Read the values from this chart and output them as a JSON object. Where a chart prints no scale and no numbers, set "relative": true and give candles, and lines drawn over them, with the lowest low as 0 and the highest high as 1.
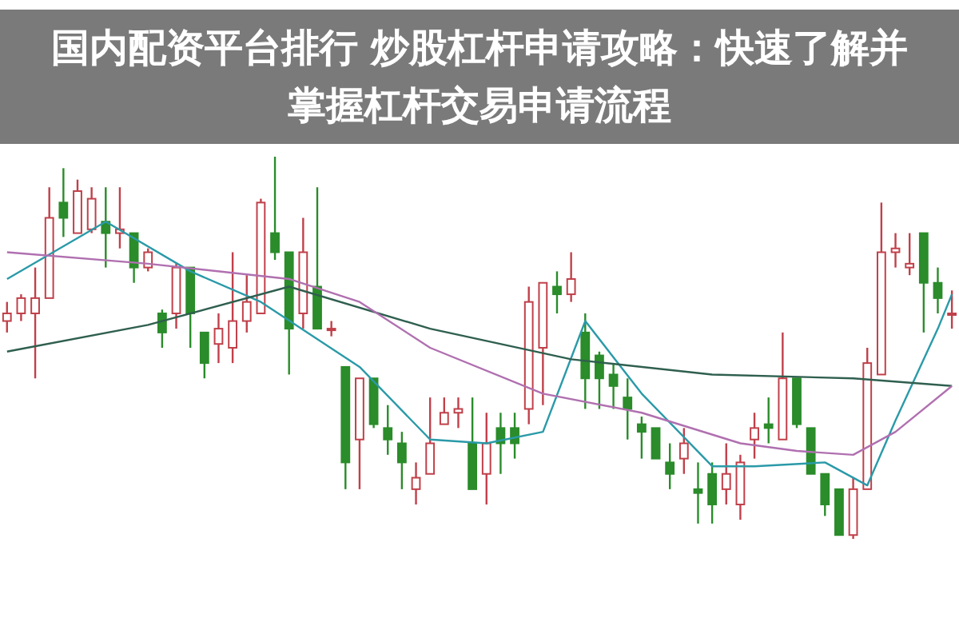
{
  "chart_data": {
    "type": "candlestick",
    "title": "国内配资平台排行 炒股杠杆申请攻略：快速了解并掌握杠杆交易申请流程",
    "relative": true,
    "categories": [
      null,
      null,
      null,
      null,
      null,
      null,
      null,
      null,
      null,
      null,
      null,
      null,
      null,
      null,
      null,
      null,
      null,
      null,
      null,
      null,
      null,
      null,
      null,
      null,
      null,
      null,
      null,
      null,
      null,
      null,
      null,
      null,
      null,
      null,
      null,
      null,
      null,
      null,
      null,
      null,
      null,
      null,
      null,
      null,
      null,
      null,
      null,
      null,
      null,
      null,
      null,
      null,
      null,
      null,
      null,
      null,
      null,
      null,
      null,
      null,
      null,
      null,
      null,
      null,
      null,
      null,
      null,
      null
    ],
    "ohlc": [
      [
        0.57,
        0.62,
        0.54,
        0.59
      ],
      [
        0.59,
        0.64,
        0.57,
        0.63
      ],
      [
        0.59,
        0.71,
        0.42,
        0.63
      ],
      [
        0.63,
        0.92,
        0.63,
        0.84
      ],
      [
        0.88,
        0.97,
        0.79,
        0.84
      ],
      [
        0.8,
        0.94,
        0.8,
        0.91
      ],
      [
        0.81,
        0.92,
        0.8,
        0.89
      ],
      [
        0.83,
        0.92,
        0.71,
        0.8
      ],
      [
        0.8,
        0.92,
        0.76,
        0.81
      ],
      [
        0.8,
        0.8,
        0.67,
        0.71
      ],
      [
        0.71,
        0.76,
        0.7,
        0.75
      ],
      [
        0.59,
        0.6,
        0.5,
        0.54
      ],
      [
        0.59,
        0.72,
        0.55,
        0.71
      ],
      [
        0.71,
        0.71,
        0.5,
        0.59
      ],
      [
        0.54,
        0.54,
        0.42,
        0.46
      ],
      [
        0.51,
        0.59,
        0.46,
        0.55
      ],
      [
        0.5,
        0.75,
        0.46,
        0.57
      ],
      [
        0.57,
        0.69,
        0.54,
        0.62
      ],
      [
        0.59,
        0.89,
        0.59,
        0.88
      ],
      [
        0.8,
        1.0,
        0.73,
        0.75
      ],
      [
        0.75,
        0.75,
        0.43,
        0.55
      ],
      [
        0.59,
        0.84,
        0.55,
        0.75
      ],
      [
        0.66,
        0.92,
        0.55,
        0.55
      ],
      [
        0.55,
        0.57,
        0.53,
        0.55
      ],
      [
        0.45,
        0.45,
        0.13,
        0.2
      ],
      [
        0.26,
        0.42,
        0.13,
        0.42
      ],
      [
        0.42,
        0.42,
        0.29,
        0.3
      ],
      [
        0.29,
        0.35,
        0.22,
        0.26
      ],
      [
        0.25,
        0.28,
        0.13,
        0.2
      ],
      [
        0.13,
        0.2,
        0.09,
        0.16
      ],
      [
        0.17,
        0.37,
        0.17,
        0.25
      ],
      [
        0.3,
        0.37,
        0.3,
        0.33
      ],
      [
        0.33,
        0.37,
        0.29,
        0.34
      ],
      [
        0.25,
        0.37,
        0.13,
        0.13
      ],
      [
        0.17,
        0.33,
        0.09,
        0.25
      ],
      [
        0.29,
        0.33,
        0.17,
        0.25
      ],
      [
        0.29,
        0.33,
        0.21,
        0.25
      ],
      [
        0.34,
        0.66,
        0.3,
        0.62
      ],
      [
        0.5,
        0.67,
        0.35,
        0.67
      ],
      [
        0.66,
        0.7,
        0.59,
        0.64
      ],
      [
        0.64,
        0.75,
        0.62,
        0.68
      ],
      [
        0.54,
        0.59,
        0.34,
        0.42
      ],
      [
        0.48,
        0.49,
        0.34,
        0.42
      ],
      [
        0.43,
        0.46,
        0.34,
        0.4
      ],
      [
        0.37,
        0.42,
        0.26,
        0.34
      ],
      [
        0.3,
        0.32,
        0.21,
        0.28
      ],
      [
        0.29,
        0.29,
        0.21,
        0.21
      ],
      [
        0.2,
        0.25,
        0.13,
        0.17
      ],
      [
        0.21,
        0.29,
        0.17,
        0.25
      ],
      [
        0.13,
        0.2,
        0.04,
        0.12
      ],
      [
        0.17,
        0.2,
        0.04,
        0.09
      ],
      [
        0.13,
        0.25,
        0.09,
        0.17
      ],
      [
        0.09,
        0.22,
        0.05,
        0.2
      ],
      [
        0.26,
        0.33,
        0.21,
        0.29
      ],
      [
        0.3,
        0.37,
        0.25,
        0.29
      ],
      [
        0.26,
        0.54,
        0.26,
        0.42
      ],
      [
        0.42,
        0.42,
        0.29,
        0.3
      ],
      [
        0.29,
        0.29,
        0.17,
        0.17
      ],
      [
        0.17,
        0.17,
        0.06,
        0.09
      ],
      [
        0.13,
        0.13,
        0.01,
        0.01
      ],
      [
        0.01,
        0.16,
        0,
        0.13
      ],
      [
        0.13,
        0.5,
        0.13,
        0.46
      ],
      [
        0.43,
        0.88,
        0.43,
        0.75
      ],
      [
        0.75,
        0.8,
        0.71,
        0.76
      ],
      [
        0.71,
        0.8,
        0.69,
        0.72
      ],
      [
        0.8,
        0.8,
        0.54,
        0.67
      ],
      [
        0.67,
        0.71,
        0.59,
        0.63
      ],
      [
        0.59,
        0.65,
        0.55,
        0.59
      ]
    ],
    "series": [
      {
        "type": "line",
        "color": "#2a9aa8",
        "values": [
          0.68,
          null,
          null,
          null,
          null,
          null,
          null,
          0.83,
          null,
          null,
          null,
          null,
          null,
          0.7,
          null,
          null,
          null,
          null,
          0.62,
          null,
          null,
          null,
          null,
          null,
          null,
          0.45,
          null,
          null,
          null,
          null,
          0.26,
          null,
          null,
          null,
          0.25,
          null,
          null,
          null,
          0.28,
          null,
          null,
          0.57,
          null,
          null,
          null,
          0.38,
          null,
          null,
          null,
          null,
          0.19,
          null,
          null,
          0.19,
          null,
          null,
          null,
          null,
          0.2,
          null,
          null,
          0.14,
          null,
          0.31,
          null,
          null,
          0.55,
          0.64
        ]
      },
      {
        "type": "line",
        "color": "#2f5f4f",
        "values": [
          0.49,
          null,
          null,
          null,
          null,
          null,
          null,
          null,
          null,
          null,
          0.56,
          null,
          null,
          null,
          null,
          null,
          null,
          null,
          null,
          null,
          0.66,
          null,
          null,
          null,
          null,
          null,
          null,
          null,
          null,
          null,
          0.55,
          null,
          null,
          null,
          null,
          null,
          null,
          null,
          null,
          null,
          0.47,
          null,
          null,
          null,
          null,
          null,
          null,
          null,
          null,
          null,
          0.43,
          null,
          null,
          null,
          null,
          null,
          null,
          null,
          null,
          null,
          0.42,
          null,
          null,
          null,
          null,
          null,
          null,
          0.4
        ]
      },
      {
        "type": "line",
        "color": "#b070b0",
        "values": [
          0.75,
          null,
          null,
          null,
          null,
          null,
          null,
          null,
          null,
          null,
          0.72,
          null,
          null,
          null,
          null,
          null,
          null,
          null,
          null,
          null,
          0.68,
          null,
          null,
          null,
          null,
          0.62,
          null,
          null,
          null,
          null,
          0.5,
          null,
          null,
          null,
          null,
          null,
          null,
          null,
          0.38,
          null,
          null,
          null,
          null,
          null,
          null,
          0.33,
          null,
          null,
          null,
          null,
          null,
          null,
          0.25,
          null,
          null,
          null,
          0.23,
          null,
          null,
          null,
          0.22,
          null,
          null,
          0.28,
          null,
          null,
          null,
          0.4
        ]
      }
    ]
  }
}
